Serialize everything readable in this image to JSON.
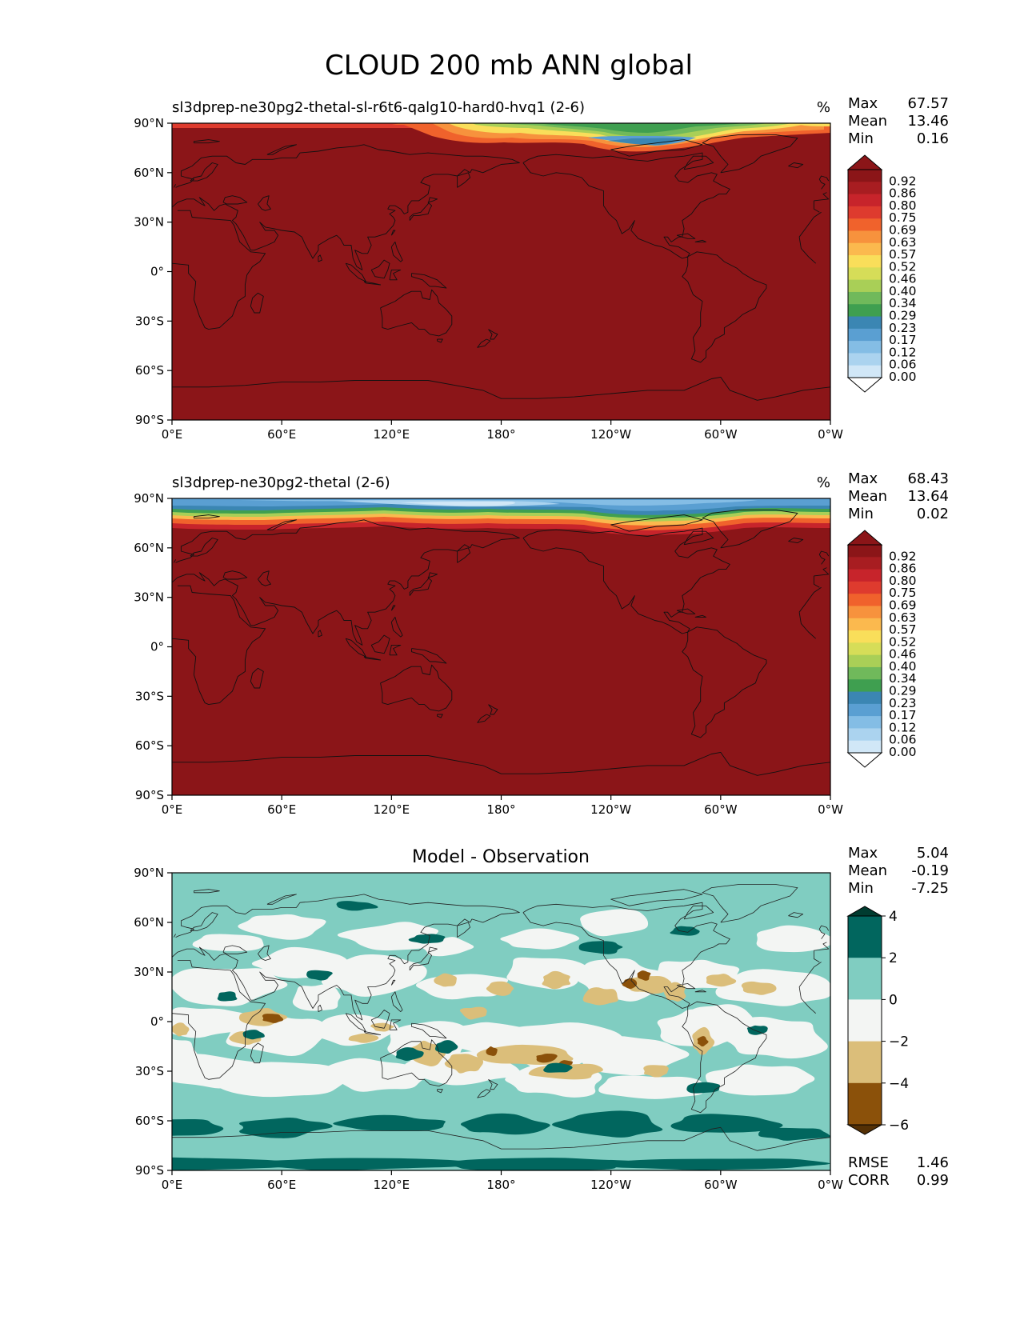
{
  "figure": {
    "title": "CLOUD 200 mb ANN global"
  },
  "chart_data": [
    {
      "type": "heatmap",
      "title": "sl3dprep-ne30pg2-thetal-sl-r6t6-qalg10-hard0-hvq1 (2-6)",
      "units": "%",
      "stats": {
        "Max": "67.57",
        "Mean": "13.46",
        "Min": "0.16"
      },
      "xticks": [
        "0°E",
        "60°E",
        "120°E",
        "180°",
        "120°W",
        "60°W",
        "0°W"
      ],
      "yticks": [
        "90°N",
        "60°N",
        "30°N",
        "0°",
        "30°S",
        "60°S",
        "90°S"
      ],
      "xlim": [
        0,
        360
      ],
      "ylim": [
        -90,
        90
      ],
      "colorbar_ticks": [
        "0.92",
        "0.86",
        "0.80",
        "0.75",
        "0.69",
        "0.63",
        "0.57",
        "0.52",
        "0.46",
        "0.40",
        "0.34",
        "0.29",
        "0.23",
        "0.17",
        "0.12",
        "0.06",
        "0.00"
      ],
      "colorbar_colors": [
        "#8b1518",
        "#a81d21",
        "#c7242b",
        "#de3b2e",
        "#f0622c",
        "#f7923d",
        "#fbb94e",
        "#f9de5a",
        "#d6dd58",
        "#a9cf57",
        "#70b95b",
        "#3f9f50",
        "#3b86b3",
        "#5a9fd2",
        "#84bde5",
        "#abd3ef",
        "#d1e7f7"
      ],
      "dominant_value": "0.92",
      "features": [
        {
          "region": "Arctic 150°E–60°W",
          "description": "lower values (green/blue) near 70–90°N"
        },
        {
          "region": "North Pole band",
          "description": "orange/yellow transition"
        }
      ]
    },
    {
      "type": "heatmap",
      "title": "sl3dprep-ne30pg2-thetal (2-6)",
      "units": "%",
      "stats": {
        "Max": "68.43",
        "Mean": "13.64",
        "Min": "0.02"
      },
      "xticks": [
        "0°E",
        "60°E",
        "120°E",
        "180°",
        "120°W",
        "60°W",
        "0°W"
      ],
      "yticks": [
        "90°N",
        "60°N",
        "30°N",
        "0°",
        "30°S",
        "60°S",
        "90°S"
      ],
      "xlim": [
        0,
        360
      ],
      "ylim": [
        -90,
        90
      ],
      "colorbar_ticks": [
        "0.92",
        "0.86",
        "0.80",
        "0.75",
        "0.69",
        "0.63",
        "0.57",
        "0.52",
        "0.46",
        "0.40",
        "0.34",
        "0.29",
        "0.23",
        "0.17",
        "0.12",
        "0.06",
        "0.00"
      ],
      "colorbar_colors": [
        "#8b1518",
        "#a81d21",
        "#c7242b",
        "#de3b2e",
        "#f0622c",
        "#f7923d",
        "#fbb94e",
        "#f9de5a",
        "#d6dd58",
        "#a9cf57",
        "#70b95b",
        "#3f9f50",
        "#3b86b3",
        "#5a9fd2",
        "#84bde5",
        "#abd3ef",
        "#d1e7f7"
      ],
      "dominant_value": "0.92",
      "features": [
        {
          "region": "Arctic all longitudes",
          "description": "low values (blue) north of ~75°N"
        }
      ]
    },
    {
      "type": "heatmap",
      "title": "Model - Observation",
      "stats": {
        "Max": "5.04",
        "Mean": "-0.19",
        "Min": "-7.25"
      },
      "metrics": {
        "RMSE": "1.46",
        "CORR": "0.99"
      },
      "xticks": [
        "0°E",
        "60°E",
        "120°E",
        "180°",
        "120°W",
        "60°W",
        "0°W"
      ],
      "yticks": [
        "90°N",
        "60°N",
        "30°N",
        "0°",
        "30°S",
        "60°S",
        "90°S"
      ],
      "xlim": [
        0,
        360
      ],
      "ylim": [
        -90,
        90
      ],
      "colorbar_ticks": [
        "4",
        "2",
        "0",
        "−2",
        "−4",
        "−6"
      ],
      "colorbar_levels": [
        -6,
        -4,
        -2,
        0,
        2,
        4
      ],
      "colorbar_colors": [
        "#8b510a",
        "#dbbe7a",
        "#f3f5f3",
        "#80cdc1",
        "#01665e"
      ],
      "colorbar_extend_colors": {
        "low": "#543005",
        "high": "#003c30"
      }
    }
  ]
}
